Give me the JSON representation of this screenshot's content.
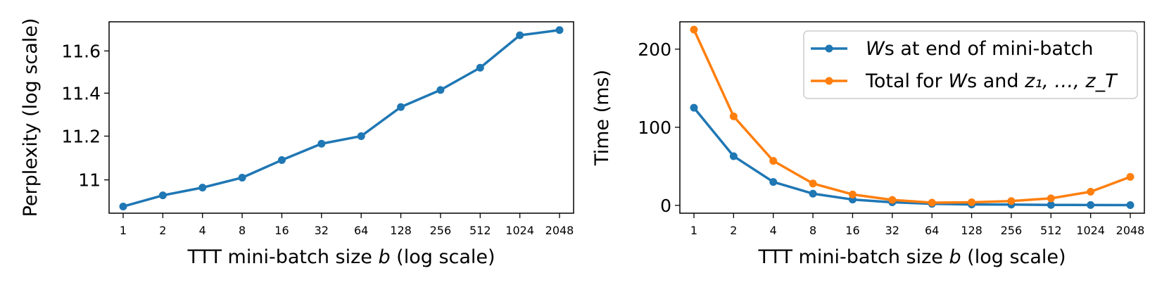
{
  "chart_data": [
    {
      "type": "line",
      "x": [
        "1",
        "2",
        "4",
        "8",
        "16",
        "32",
        "64",
        "128",
        "256",
        "512",
        "1024",
        "2048"
      ],
      "series": [
        {
          "values": [
            10.88,
            10.93,
            10.965,
            11.01,
            11.09,
            11.165,
            11.2,
            11.335,
            11.415,
            11.52,
            11.675,
            11.7
          ],
          "color": "#1f77b4"
        }
      ],
      "yticks": [
        {
          "value": 11,
          "label": "11"
        },
        {
          "value": 11.2,
          "label": "11.2"
        },
        {
          "value": 11.4,
          "label": "11.4"
        },
        {
          "value": 11.6,
          "label": "11.6"
        }
      ],
      "ylim": [
        10.85,
        11.74
      ],
      "scale": "log",
      "xlabel_pre": "TTT mini-batch size ",
      "xlabel_var": "b",
      "xlabel_post": " (log scale)",
      "ylabel": "Perplexity (log scale)",
      "grid": false
    },
    {
      "type": "line",
      "x": [
        "1",
        "2",
        "4",
        "8",
        "16",
        "32",
        "64",
        "128",
        "256",
        "512",
        "1024",
        "2048"
      ],
      "series": [
        {
          "name_var": "W",
          "name_text": "s at end of mini-batch",
          "values": [
            125,
            63,
            30,
            15,
            7.5,
            4,
            2,
            1.2,
            1,
            0.6,
            0.5,
            0.4
          ],
          "color": "#1f77b4"
        },
        {
          "name_pre": "Total for ",
          "name_var": "W",
          "name_mid": "s and ",
          "name_math": "z₁, …, z_T",
          "values": [
            225,
            114,
            57,
            28,
            14,
            7,
            3.5,
            4,
            5.5,
            9,
            17.5,
            36.5
          ],
          "color": "#ff7f0e"
        }
      ],
      "yticks": [
        {
          "value": 0,
          "label": "0"
        },
        {
          "value": 100,
          "label": "100"
        },
        {
          "value": 200,
          "label": "200"
        }
      ],
      "ylim": [
        -10,
        235
      ],
      "xlabel_pre": "TTT mini-batch size ",
      "xlabel_var": "b",
      "xlabel_post": " (log scale)",
      "ylabel": "Time (ms)",
      "legend": "top-right",
      "grid": false
    }
  ]
}
